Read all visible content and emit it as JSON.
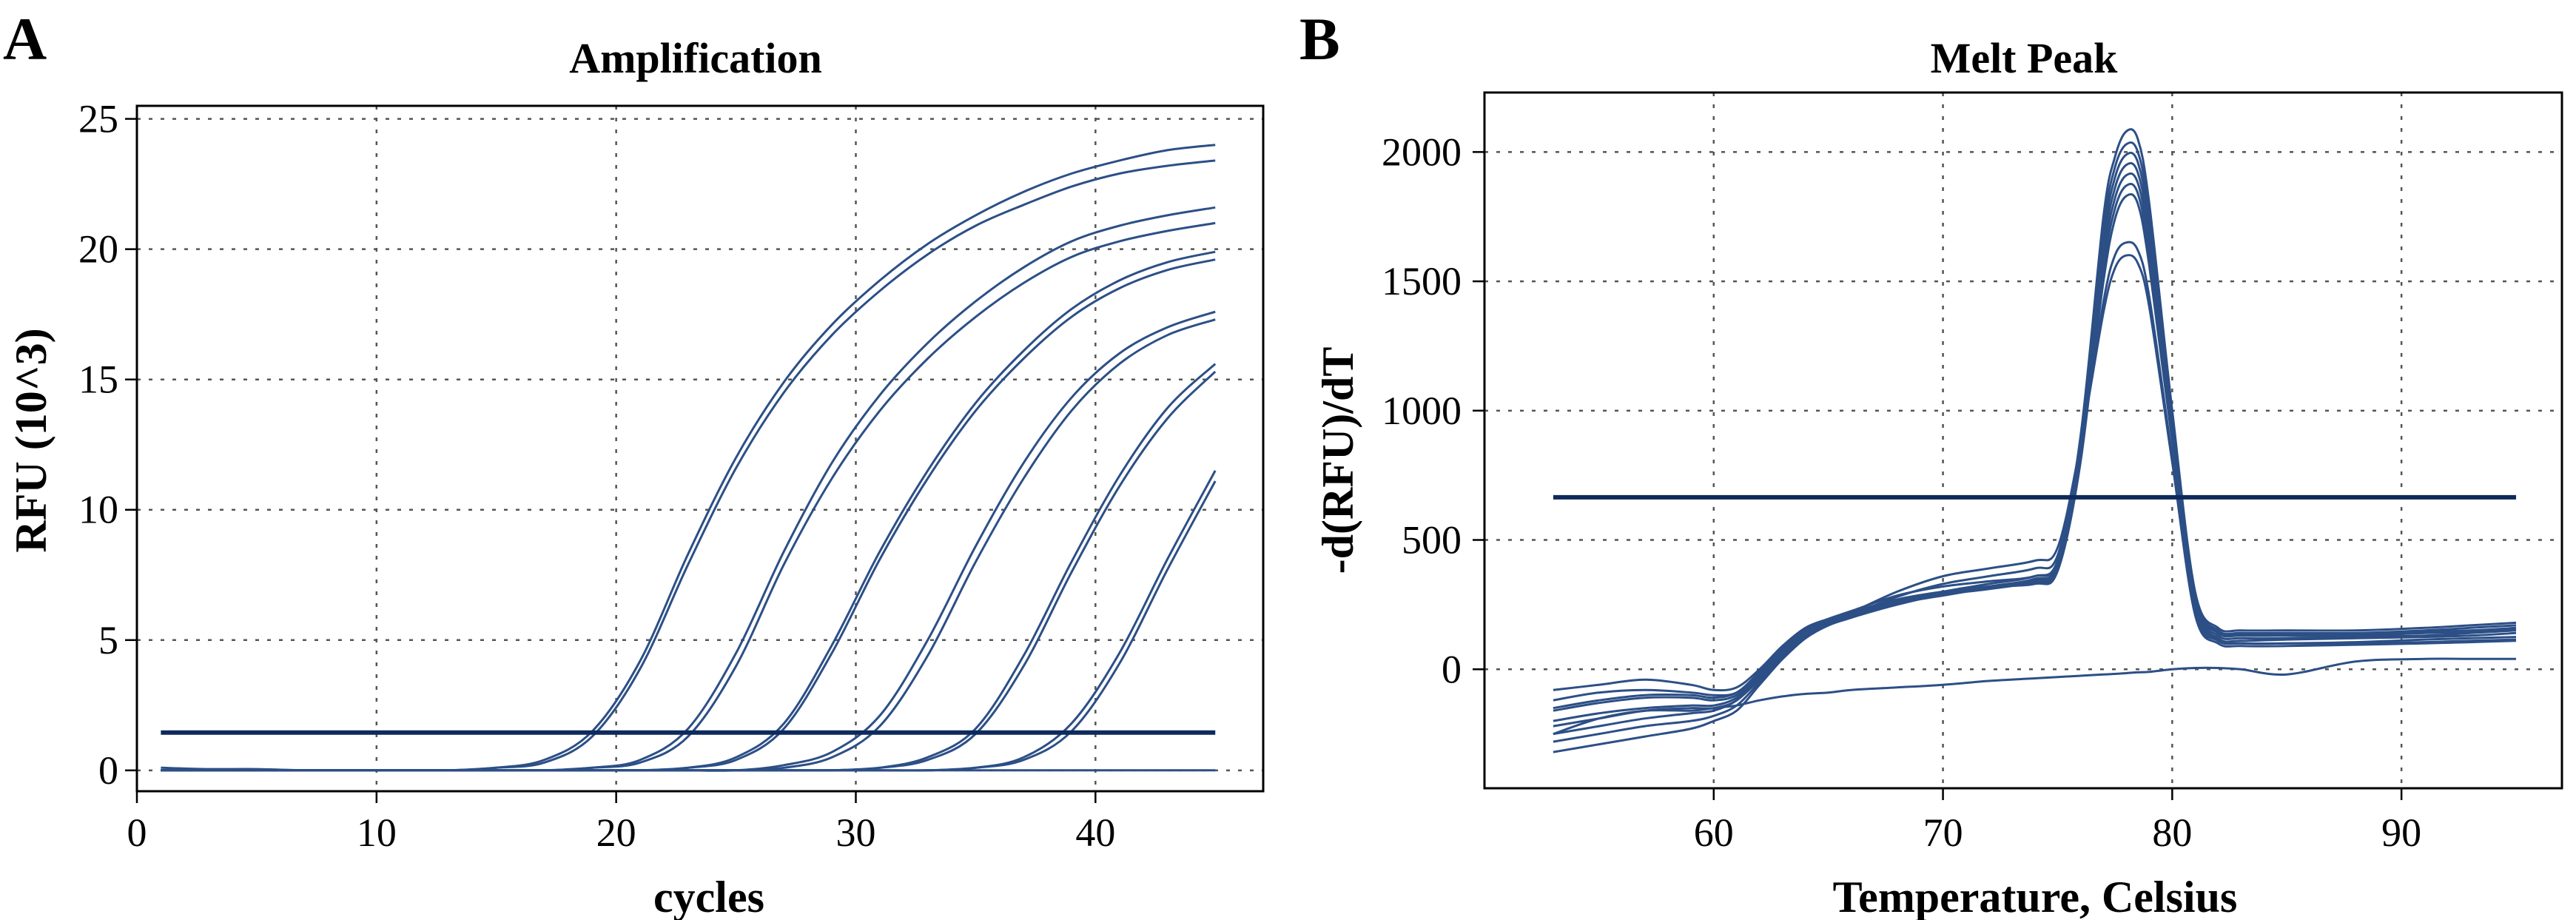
{
  "chart_data": [
    {
      "panel": "A",
      "type": "line",
      "title": "Amplification",
      "xlabel": "cycles",
      "ylabel": "RFU (10^3)",
      "xlim": [
        0,
        47
      ],
      "ylim": [
        -0.8,
        25.5
      ],
      "xticks": [
        "0",
        "10",
        "20",
        "30",
        "40"
      ],
      "xtick_values": [
        0,
        10,
        20,
        30,
        40
      ],
      "yticks": [
        "0",
        "5",
        "10",
        "15",
        "20",
        "25"
      ],
      "ytick_values": [
        0,
        5,
        10,
        15,
        20,
        25
      ],
      "grid": true,
      "line_color": "#2c4f86",
      "threshold_color": "#0e2a5c",
      "threshold": 1.45,
      "x": [
        1,
        3,
        5,
        7,
        9,
        11,
        13,
        15,
        17,
        19,
        21,
        23,
        25,
        27,
        29,
        31,
        33,
        35,
        37,
        39,
        41,
        43,
        45
      ],
      "series": [
        {
          "values": [
            0.0,
            0.0,
            0.0,
            0.0,
            0.0,
            0.0,
            0.0,
            0.1,
            0.4,
            1.5,
            4.2,
            8.3,
            12.0,
            14.9,
            17.1,
            18.8,
            20.2,
            21.3,
            22.2,
            22.9,
            23.4,
            23.8,
            24.0
          ]
        },
        {
          "values": [
            0.0,
            0.0,
            0.0,
            0.0,
            0.0,
            0.0,
            0.0,
            0.1,
            0.3,
            1.3,
            3.9,
            7.9,
            11.6,
            14.5,
            16.7,
            18.4,
            19.8,
            20.9,
            21.7,
            22.4,
            22.9,
            23.2,
            23.4
          ]
        },
        {
          "values": [
            0.0,
            0.0,
            0.0,
            0.0,
            0.0,
            0.0,
            0.0,
            0.0,
            0.0,
            0.1,
            0.4,
            1.6,
            4.5,
            8.4,
            11.8,
            14.4,
            16.4,
            18.0,
            19.3,
            20.3,
            20.9,
            21.3,
            21.6
          ]
        },
        {
          "values": [
            0.0,
            0.0,
            0.0,
            0.0,
            0.0,
            0.0,
            0.0,
            0.0,
            0.0,
            0.1,
            0.3,
            1.3,
            4.0,
            7.9,
            11.2,
            13.8,
            15.8,
            17.4,
            18.7,
            19.7,
            20.3,
            20.7,
            21.0
          ]
        },
        {
          "values": [
            0.0,
            0.0,
            0.0,
            0.0,
            0.0,
            0.0,
            0.0,
            0.0,
            0.0,
            0.0,
            0.0,
            0.1,
            0.5,
            1.8,
            4.8,
            8.4,
            11.5,
            14.1,
            16.1,
            17.7,
            18.8,
            19.5,
            19.9
          ]
        },
        {
          "values": [
            0.0,
            0.0,
            0.0,
            0.0,
            0.0,
            0.0,
            0.0,
            0.0,
            0.0,
            0.0,
            0.0,
            0.1,
            0.4,
            1.6,
            4.5,
            8.1,
            11.2,
            13.8,
            15.8,
            17.4,
            18.5,
            19.2,
            19.6
          ]
        },
        {
          "values": [
            0.0,
            0.0,
            0.0,
            0.0,
            0.0,
            0.0,
            0.0,
            0.0,
            0.0,
            0.0,
            0.0,
            0.0,
            0.0,
            0.2,
            0.7,
            2.1,
            5.0,
            8.6,
            11.8,
            14.3,
            16.0,
            17.0,
            17.6
          ]
        },
        {
          "values": [
            0.0,
            0.0,
            0.0,
            0.0,
            0.0,
            0.0,
            0.0,
            0.0,
            0.0,
            0.0,
            0.0,
            0.0,
            0.0,
            0.1,
            0.5,
            1.7,
            4.4,
            8.0,
            11.2,
            13.8,
            15.6,
            16.7,
            17.3
          ]
        },
        {
          "values": [
            0.0,
            0.0,
            0.0,
            0.0,
            0.0,
            0.0,
            0.0,
            0.0,
            0.0,
            0.0,
            0.0,
            0.0,
            0.0,
            0.0,
            0.0,
            0.1,
            0.5,
            1.6,
            4.4,
            8.0,
            11.3,
            13.9,
            15.6
          ]
        },
        {
          "values": [
            0.0,
            0.0,
            0.0,
            0.0,
            0.0,
            0.0,
            0.0,
            0.0,
            0.0,
            0.0,
            0.0,
            0.0,
            0.0,
            0.0,
            0.0,
            0.1,
            0.4,
            1.4,
            4.0,
            7.6,
            10.9,
            13.5,
            15.3
          ]
        },
        {
          "values": [
            0.0,
            0.0,
            0.0,
            0.0,
            0.0,
            0.0,
            0.0,
            0.0,
            0.0,
            0.0,
            0.0,
            0.0,
            0.0,
            0.0,
            0.0,
            0.0,
            0.0,
            0.1,
            0.5,
            1.8,
            4.5,
            8.1,
            11.5
          ]
        },
        {
          "values": [
            0.0,
            0.0,
            0.0,
            0.0,
            0.0,
            0.0,
            0.0,
            0.0,
            0.0,
            0.0,
            0.0,
            0.0,
            0.0,
            0.0,
            0.0,
            0.0,
            0.0,
            0.1,
            0.4,
            1.5,
            4.1,
            7.7,
            11.1
          ]
        },
        {
          "values": [
            0.1,
            0.05,
            0.05,
            0.0,
            0.0,
            0.0,
            0.0,
            0.0,
            0.0,
            0.0,
            0.0,
            0.0,
            0.0,
            0.0,
            0.0,
            0.0,
            0.0,
            0.0,
            0.0,
            0.0,
            0.0,
            0.0,
            0.0
          ]
        }
      ]
    },
    {
      "panel": "B",
      "type": "line",
      "title": "Melt Peak",
      "xlabel": "Temperature, Celsius",
      "ylabel": "-d(RFU)/dT",
      "xlim": [
        50,
        97
      ],
      "ylim": [
        -460,
        2230
      ],
      "xticks": [
        "60",
        "70",
        "80",
        "90"
      ],
      "xtick_values": [
        60,
        70,
        80,
        90
      ],
      "yticks": [
        "0",
        "500",
        "1000",
        "1500",
        "2000"
      ],
      "ytick_values": [
        0,
        500,
        1000,
        1500,
        2000
      ],
      "grid": true,
      "line_color": "#2c4f86",
      "threshold_color": "#0e2a5c",
      "threshold": 665,
      "x": [
        53,
        55,
        57,
        59,
        60,
        61,
        62,
        63,
        64,
        65,
        66,
        68,
        70,
        72,
        74,
        75,
        76,
        77,
        77.5,
        78,
        78.5,
        79,
        80,
        81,
        82,
        83,
        85,
        88,
        91,
        93,
        95
      ],
      "series": [
        {
          "values": [
            -320,
            -290,
            -260,
            -230,
            -200,
            -160,
            -60,
            40,
            120,
            170,
            200,
            260,
            300,
            330,
            360,
            420,
            900,
            1750,
            1980,
            2080,
            2050,
            1800,
            1000,
            300,
            160,
            150,
            150,
            150,
            160,
            170,
            180
          ]
        },
        {
          "values": [
            -280,
            -250,
            -220,
            -200,
            -180,
            -140,
            -50,
            40,
            120,
            170,
            200,
            250,
            290,
            320,
            350,
            410,
            880,
            1700,
            1940,
            2030,
            2000,
            1760,
            980,
            290,
            150,
            140,
            140,
            140,
            150,
            160,
            170
          ]
        },
        {
          "values": [
            -250,
            -220,
            -190,
            -170,
            -160,
            -120,
            -40,
            50,
            130,
            175,
            205,
            255,
            285,
            315,
            345,
            400,
            860,
            1660,
            1900,
            1990,
            1960,
            1720,
            960,
            280,
            145,
            135,
            135,
            135,
            145,
            150,
            160
          ]
        },
        {
          "values": [
            -200,
            -170,
            -150,
            -140,
            -140,
            -110,
            -30,
            60,
            140,
            180,
            210,
            260,
            290,
            310,
            340,
            395,
            840,
            1620,
            1860,
            1950,
            1920,
            1680,
            940,
            270,
            140,
            130,
            130,
            130,
            140,
            145,
            155
          ]
        },
        {
          "values": [
            -160,
            -130,
            -110,
            -110,
            -120,
            -100,
            -20,
            70,
            150,
            185,
            215,
            265,
            295,
            315,
            335,
            390,
            820,
            1580,
            1820,
            1910,
            1880,
            1640,
            920,
            260,
            130,
            120,
            120,
            125,
            130,
            140,
            150
          ]
        },
        {
          "values": [
            -120,
            -90,
            -80,
            -90,
            -100,
            -90,
            -10,
            80,
            155,
            190,
            220,
            270,
            300,
            320,
            330,
            380,
            800,
            1540,
            1780,
            1870,
            1840,
            1600,
            900,
            250,
            120,
            110,
            115,
            120,
            125,
            130,
            140
          ]
        },
        {
          "values": [
            -80,
            -60,
            -40,
            -60,
            -80,
            -70,
            0,
            90,
            160,
            195,
            225,
            285,
            320,
            340,
            360,
            420,
            830,
            1500,
            1740,
            1830,
            1800,
            1560,
            880,
            240,
            115,
            100,
            100,
            105,
            115,
            120,
            125
          ]
        },
        {
          "values": [
            -220,
            -190,
            -160,
            -150,
            -150,
            -120,
            -30,
            55,
            130,
            175,
            210,
            280,
            330,
            360,
            390,
            440,
            860,
            1420,
            1600,
            1650,
            1620,
            1440,
            820,
            220,
            110,
            100,
            100,
            100,
            105,
            110,
            115
          ]
        },
        {
          "values": [
            -150,
            -120,
            -100,
            -100,
            -110,
            -90,
            -10,
            80,
            150,
            190,
            220,
            300,
            360,
            390,
            420,
            470,
            870,
            1380,
            1550,
            1600,
            1570,
            1400,
            800,
            210,
            100,
            90,
            90,
            95,
            100,
            105,
            110
          ]
        },
        {
          "values": [
            -250,
            -190,
            -160,
            -160,
            -150,
            -140,
            -120,
            -105,
            -95,
            -90,
            -80,
            -70,
            -60,
            -45,
            -35,
            -30,
            -25,
            -20,
            -18,
            -15,
            -12,
            -10,
            0,
            5,
            5,
            0,
            -20,
            30,
            40,
            40,
            40
          ]
        }
      ]
    }
  ]
}
